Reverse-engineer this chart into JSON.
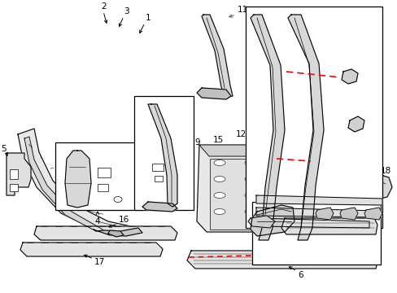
{
  "bg_color": "#ffffff",
  "lc": "#000000",
  "rc": "#ff0000",
  "gc": "#666666",
  "fig_width": 4.89,
  "fig_height": 3.6,
  "dpi": 100
}
